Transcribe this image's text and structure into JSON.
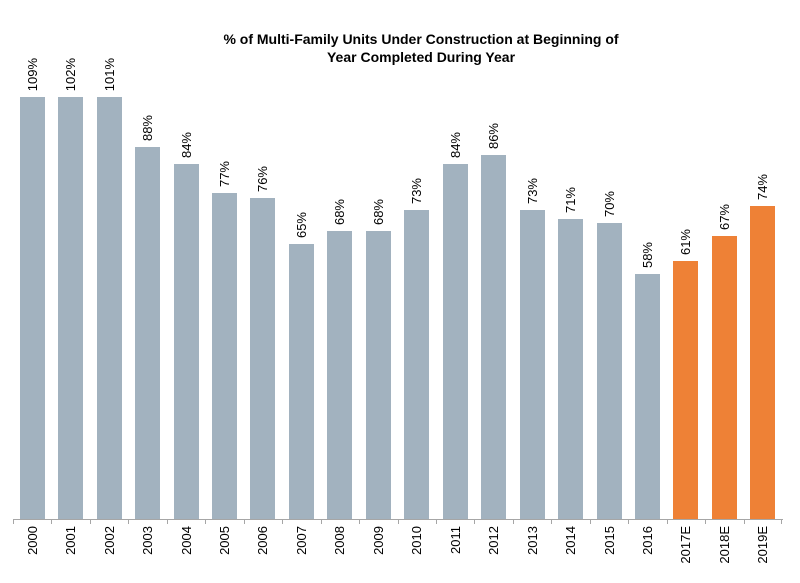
{
  "title_lines": [
    "% of Multi-Family Units Under Construction at Beginning of",
    "Year Completed During Year"
  ],
  "chart_data": {
    "type": "bar",
    "title": "% of Multi-Family Units Under Construction at Beginning of Year Completed During Year",
    "categories": [
      "2000",
      "2001",
      "2002",
      "2003",
      "2004",
      "2005",
      "2006",
      "2007",
      "2008",
      "2009",
      "2010",
      "2011",
      "2012",
      "2013",
      "2014",
      "2015",
      "2016",
      "2017E",
      "2018E",
      "2019E"
    ],
    "values": [
      109,
      102,
      101,
      88,
      84,
      77,
      76,
      65,
      68,
      68,
      73,
      84,
      86,
      73,
      71,
      70,
      58,
      61,
      67,
      74
    ],
    "data_labels": [
      "109%",
      "102%",
      "101%",
      "88%",
      "84%",
      "77%",
      "76%",
      "65%",
      "68%",
      "68%",
      "73%",
      "84%",
      "86%",
      "73%",
      "71%",
      "70%",
      "58%",
      "61%",
      "67%",
      "74%"
    ],
    "estimate_flags": [
      false,
      false,
      false,
      false,
      false,
      false,
      false,
      false,
      false,
      false,
      false,
      false,
      false,
      false,
      false,
      false,
      false,
      true,
      true,
      true
    ],
    "xlabel": "",
    "ylabel": "",
    "ylim": [
      0,
      109
    ],
    "grid": "off",
    "legend": "none",
    "data_label_rotation_deg": 90,
    "x_tick_label_rotation_deg": 90,
    "colors": {
      "bar_actual": "#A2B2BF",
      "bar_estimate": "#EE8136",
      "axis_line": "#A6A6A6",
      "label_text": "#000000",
      "background": "#FFFFFF"
    }
  }
}
